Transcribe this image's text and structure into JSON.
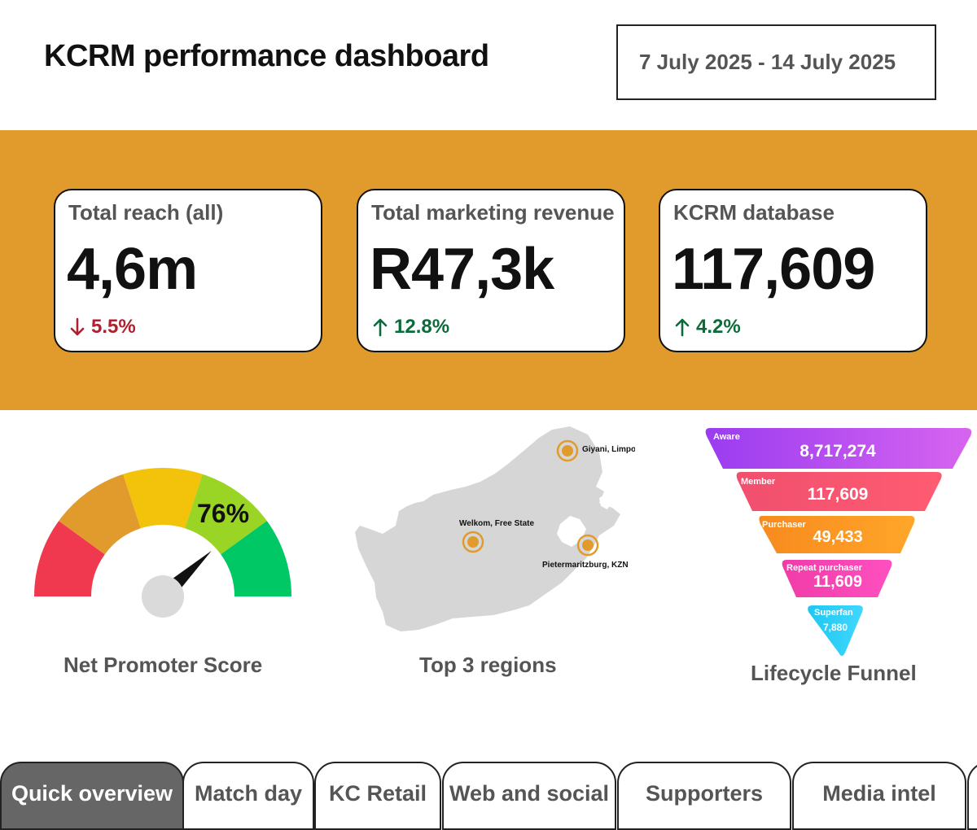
{
  "header": {
    "title": "KCRM performance dashboard",
    "date_range": "7 July 2025 - 14 July 2025"
  },
  "kpis": [
    {
      "label": "Total reach (all)",
      "value": "4,6m",
      "delta": "5.5%",
      "direction": "down",
      "arrow_icon": "arrow-down-icon"
    },
    {
      "label": "Total marketing revenue",
      "value": "R47,3k",
      "delta": "12.8%",
      "direction": "up",
      "arrow_icon": "arrow-up-icon"
    },
    {
      "label": "KCRM database",
      "value": "117,609",
      "delta": "4.2%",
      "direction": "up",
      "arrow_icon": "arrow-up-icon"
    }
  ],
  "nps": {
    "label": "Net Promoter Score",
    "value_text": "76%",
    "value": 76,
    "segment_colors": [
      "#F0394F",
      "#E09B2C",
      "#F3C20B",
      "#9AD424",
      "#00C864"
    ]
  },
  "regions": {
    "label": "Top 3 regions",
    "markers": [
      "Giyani, Limpopo",
      "Welkom, Free State",
      "Pietermaritzburg, KZN"
    ]
  },
  "funnel": {
    "label": "Lifecycle Funnel",
    "stages": [
      {
        "name": "Aware",
        "value": "8,717,274"
      },
      {
        "name": "Member",
        "value": "117,609"
      },
      {
        "name": "Purchaser",
        "value": "49,433"
      },
      {
        "name": "Repeat purchaser",
        "value": "11,609"
      },
      {
        "name": "Superfan",
        "value": "7,880"
      }
    ]
  },
  "tabs": [
    {
      "label": "Quick overview",
      "active": true
    },
    {
      "label": "Match day",
      "active": false
    },
    {
      "label": "KC Retail",
      "active": false
    },
    {
      "label": "Web and social",
      "active": false
    },
    {
      "label": "Supporters",
      "active": false
    },
    {
      "label": "Media intel",
      "active": false
    }
  ],
  "colors": {
    "kpi_band": "#E09B2C",
    "delta_down": "#B11E2D",
    "delta_up": "#0B6B3A",
    "map_fill": "#D6D6D6",
    "marker": "#E09B2C"
  }
}
